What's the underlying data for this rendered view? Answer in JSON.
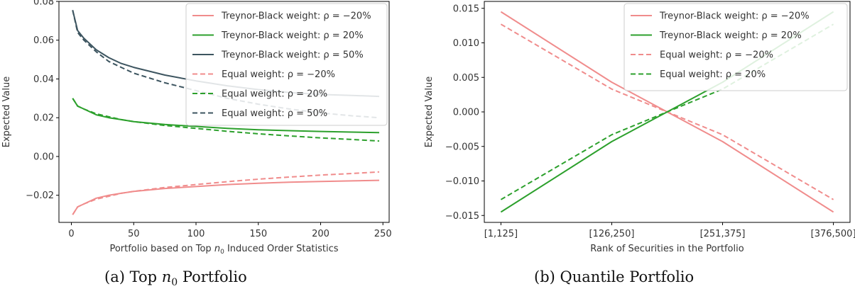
{
  "colors": {
    "red": "#f08c8c",
    "green": "#2ca02c",
    "slate": "#3d5560",
    "axis": "#000000",
    "text": "#333333"
  },
  "captions": {
    "a": "(a) Top n0 Portfolio",
    "b": "(b) Quantile Portfolio"
  },
  "chart_data": [
    {
      "id": "a",
      "type": "line",
      "title": "",
      "xlabel": "Portfolio based on Top n0 Induced Order Statistics",
      "ylabel": "Expected Value",
      "xlim": [
        -10,
        255
      ],
      "ylim": [
        -0.034,
        0.08
      ],
      "xticks": [
        0,
        50,
        100,
        150,
        200,
        250
      ],
      "xtick_labels": [
        "0",
        "50",
        "100",
        "150",
        "200",
        "250"
      ],
      "yticks": [
        -0.02,
        0.0,
        0.02,
        0.04,
        0.06,
        0.08
      ],
      "ytick_labels": [
        "−0.02",
        "0.00",
        "0.02",
        "0.04",
        "0.06",
        "0.08"
      ],
      "grid": false,
      "legend_position": "top-right",
      "x": [
        1,
        5,
        10,
        20,
        30,
        40,
        50,
        75,
        100,
        125,
        150,
        175,
        200,
        225,
        247
      ],
      "series": [
        {
          "name": "Treynor-Black weight: ρ = −20%",
          "color": "#f08c8c",
          "dash": "solid",
          "values": [
            -0.03,
            -0.026,
            -0.0245,
            -0.0215,
            -0.02,
            -0.019,
            -0.018,
            -0.0165,
            -0.0155,
            -0.0145,
            -0.0138,
            -0.0133,
            -0.0129,
            -0.0126,
            -0.0123
          ]
        },
        {
          "name": "Treynor-Black weight: ρ = 20%",
          "color": "#2ca02c",
          "dash": "solid",
          "values": [
            0.03,
            0.026,
            0.0245,
            0.0215,
            0.02,
            0.019,
            0.018,
            0.0165,
            0.0155,
            0.0145,
            0.0138,
            0.0133,
            0.0129,
            0.0126,
            0.0123
          ]
        },
        {
          "name": "Treynor-Black weight: ρ = 50%",
          "color": "#3d5560",
          "dash": "solid",
          "values": [
            0.0755,
            0.065,
            0.061,
            0.055,
            0.051,
            0.048,
            0.046,
            0.042,
            0.039,
            0.0365,
            0.0345,
            0.033,
            0.032,
            0.0315,
            0.031
          ]
        },
        {
          "name": "Equal weight: ρ = −20%",
          "color": "#f08c8c",
          "dash": "dashed",
          "values": [
            -0.03,
            -0.026,
            -0.0245,
            -0.022,
            -0.0205,
            -0.019,
            -0.018,
            -0.016,
            -0.0145,
            -0.013,
            -0.0117,
            -0.0106,
            -0.0096,
            -0.0088,
            -0.008
          ]
        },
        {
          "name": "Equal weight: ρ = 20%",
          "color": "#2ca02c",
          "dash": "dashed",
          "values": [
            0.03,
            0.026,
            0.0245,
            0.022,
            0.0205,
            0.019,
            0.018,
            0.016,
            0.0145,
            0.013,
            0.0117,
            0.0106,
            0.0096,
            0.0088,
            0.008
          ]
        },
        {
          "name": "Equal weight: ρ = 50%",
          "color": "#3d5560",
          "dash": "dashed",
          "values": [
            0.0755,
            0.064,
            0.06,
            0.054,
            0.049,
            0.046,
            0.043,
            0.038,
            0.034,
            0.03,
            0.027,
            0.0245,
            0.0225,
            0.021,
            0.02
          ]
        }
      ]
    },
    {
      "id": "b",
      "type": "line",
      "title": "",
      "xlabel": "Rank of Securities in the Portfolio",
      "ylabel": "Expected Value",
      "xlim": [
        -0.15,
        3.15
      ],
      "ylim": [
        -0.016,
        0.016
      ],
      "categories": [
        "[1,125]",
        "[126,250]",
        "[251,375]",
        "[376,500]"
      ],
      "yticks": [
        -0.015,
        -0.01,
        -0.005,
        0.0,
        0.005,
        0.01,
        0.015
      ],
      "ytick_labels": [
        "−0.015",
        "−0.010",
        "−0.005",
        "0.000",
        "0.005",
        "0.010",
        "0.015"
      ],
      "grid": false,
      "legend_position": "top-right",
      "series": [
        {
          "name": "Treynor-Black weight: ρ = −20%",
          "color": "#f08c8c",
          "dash": "solid",
          "values": [
            0.0145,
            0.0043,
            -0.0043,
            -0.0145
          ]
        },
        {
          "name": "Treynor-Black weight: ρ = 20%",
          "color": "#2ca02c",
          "dash": "solid",
          "values": [
            -0.0145,
            -0.0043,
            0.0043,
            0.0145
          ]
        },
        {
          "name": "Equal weight: ρ = −20%",
          "color": "#f08c8c",
          "dash": "dashed",
          "values": [
            0.0127,
            0.0033,
            -0.0033,
            -0.0127
          ]
        },
        {
          "name": "Equal weight: ρ = 20%",
          "color": "#2ca02c",
          "dash": "dashed",
          "values": [
            -0.0127,
            -0.0033,
            0.0033,
            0.0127
          ]
        }
      ]
    }
  ]
}
